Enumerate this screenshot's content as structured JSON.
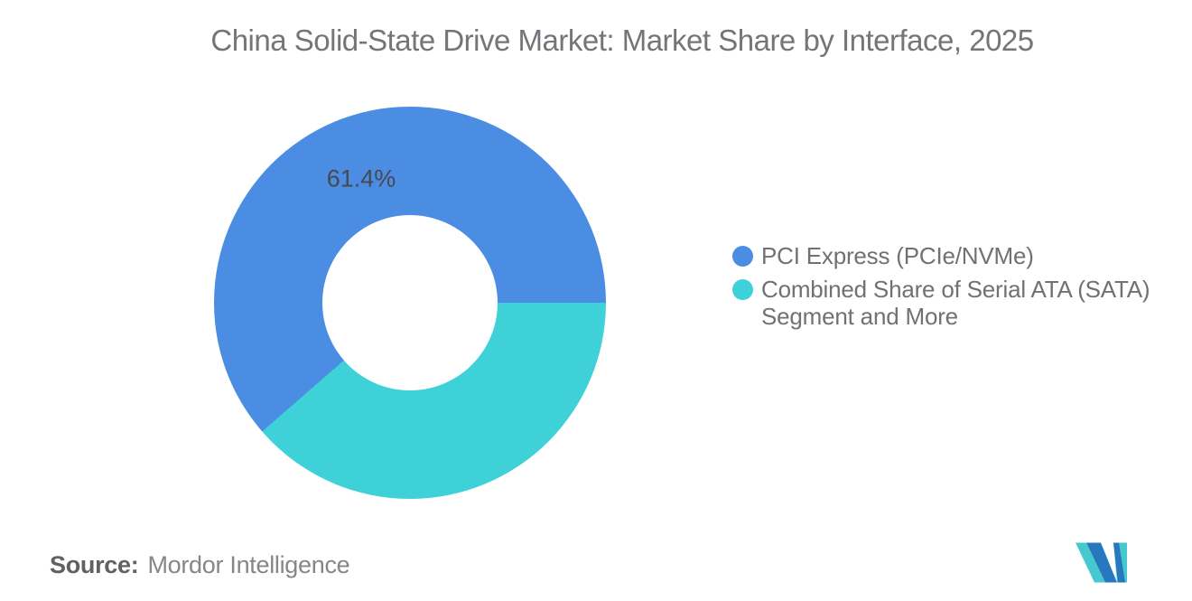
{
  "title": "China Solid-State Drive Market: Market Share by Interface, 2025",
  "chart_data": {
    "type": "pie",
    "subtype": "donut",
    "title": "China Solid-State Drive Market: Market Share by Interface, 2025",
    "inner_radius_pct_of_outer": 44.7,
    "boundary_start_deg_clockwise_from_top": 90,
    "slices": [
      {
        "label": "PCI Express (PCIe/NVMe)",
        "value": 61.4,
        "color": "#4A8DE2",
        "data_label": "61.4%"
      },
      {
        "label": "Combined Share of Serial ATA (SATA) Segment and More",
        "value": 38.6,
        "color": "#3ED1D7",
        "data_label": ""
      }
    ],
    "legend_position": "right",
    "background": "#FFFFFF"
  },
  "legend": {
    "items": [
      {
        "color": "#4A8DE2",
        "lines": [
          "PCI Express (PCIe/NVMe)"
        ]
      },
      {
        "color": "#3ED1D7",
        "lines": [
          "Combined Share of Serial ATA (SATA)",
          "Segment and More"
        ]
      }
    ]
  },
  "footer": {
    "source_prefix": "Source:",
    "source_text": "Mordor Intelligence"
  },
  "logo": {
    "name": "mordor-intelligence-logo",
    "colors": {
      "blue": "#2778BE",
      "teal": "#46C9CE"
    }
  }
}
